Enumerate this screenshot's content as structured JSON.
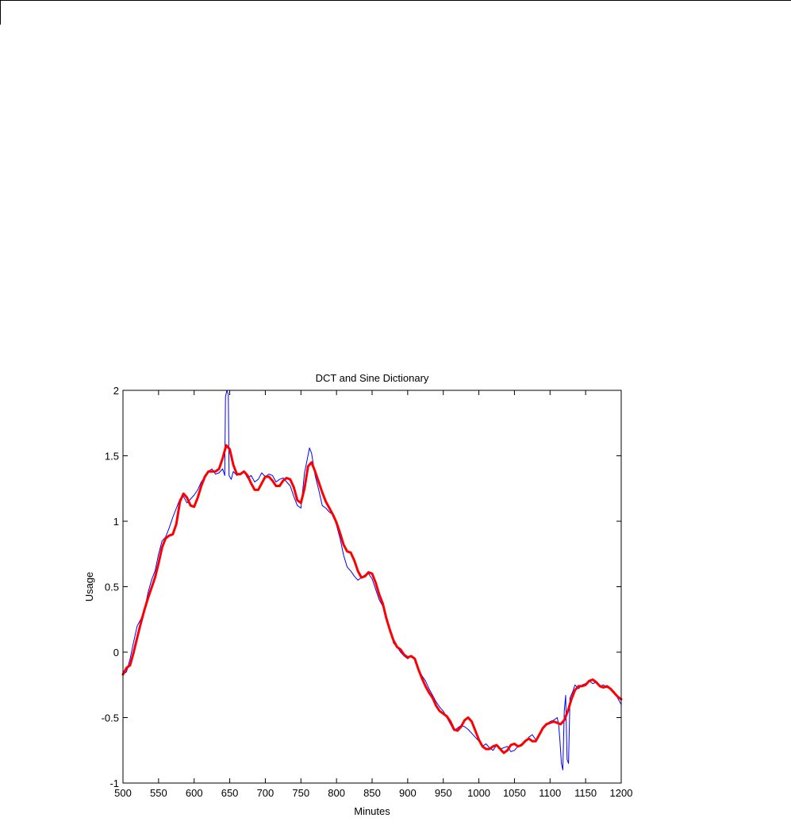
{
  "chart_data": {
    "type": "line",
    "title": "DCT and Sine Dictionary",
    "xlabel": "Minutes",
    "ylabel": "Usage",
    "xlim": [
      500,
      1200
    ],
    "ylim": [
      -1,
      2
    ],
    "x_ticks": [
      500,
      550,
      600,
      650,
      700,
      750,
      800,
      850,
      900,
      950,
      1000,
      1050,
      1100,
      1150,
      1200
    ],
    "y_ticks": [
      -1,
      -0.5,
      0,
      0.5,
      1,
      1.5,
      2
    ],
    "grid": false,
    "legend": "none",
    "series": [
      {
        "color": "#0000ff",
        "points": [
          [
            500,
            -0.17
          ],
          [
            505,
            -0.15
          ],
          [
            510,
            -0.05
          ],
          [
            515,
            0.08
          ],
          [
            520,
            0.2
          ],
          [
            525,
            0.25
          ],
          [
            530,
            0.32
          ],
          [
            535,
            0.45
          ],
          [
            540,
            0.55
          ],
          [
            545,
            0.62
          ],
          [
            550,
            0.75
          ],
          [
            555,
            0.85
          ],
          [
            560,
            0.88
          ],
          [
            565,
            0.95
          ],
          [
            570,
            1.03
          ],
          [
            575,
            1.1
          ],
          [
            580,
            1.17
          ],
          [
            585,
            1.19
          ],
          [
            590,
            1.14
          ],
          [
            595,
            1.17
          ],
          [
            600,
            1.2
          ],
          [
            605,
            1.24
          ],
          [
            610,
            1.3
          ],
          [
            615,
            1.34
          ],
          [
            620,
            1.38
          ],
          [
            625,
            1.4
          ],
          [
            630,
            1.36
          ],
          [
            635,
            1.37
          ],
          [
            640,
            1.4
          ],
          [
            643,
            1.35
          ],
          [
            644,
            1.95
          ],
          [
            646,
            2.0
          ],
          [
            648,
            1.97
          ],
          [
            649,
            1.35
          ],
          [
            652,
            1.32
          ],
          [
            655,
            1.38
          ],
          [
            660,
            1.35
          ],
          [
            665,
            1.36
          ],
          [
            670,
            1.38
          ],
          [
            675,
            1.33
          ],
          [
            680,
            1.35
          ],
          [
            685,
            1.3
          ],
          [
            690,
            1.32
          ],
          [
            695,
            1.37
          ],
          [
            700,
            1.34
          ],
          [
            705,
            1.36
          ],
          [
            710,
            1.35
          ],
          [
            715,
            1.3
          ],
          [
            720,
            1.32
          ],
          [
            725,
            1.33
          ],
          [
            730,
            1.3
          ],
          [
            735,
            1.27
          ],
          [
            740,
            1.19
          ],
          [
            745,
            1.12
          ],
          [
            750,
            1.1
          ],
          [
            755,
            1.37
          ],
          [
            758,
            1.45
          ],
          [
            762,
            1.56
          ],
          [
            765,
            1.52
          ],
          [
            770,
            1.35
          ],
          [
            775,
            1.24
          ],
          [
            780,
            1.12
          ],
          [
            785,
            1.1
          ],
          [
            790,
            1.07
          ],
          [
            795,
            1.05
          ],
          [
            800,
            0.97
          ],
          [
            805,
            0.87
          ],
          [
            810,
            0.74
          ],
          [
            815,
            0.65
          ],
          [
            820,
            0.62
          ],
          [
            825,
            0.58
          ],
          [
            830,
            0.55
          ],
          [
            835,
            0.57
          ],
          [
            840,
            0.59
          ],
          [
            845,
            0.6
          ],
          [
            850,
            0.56
          ],
          [
            855,
            0.48
          ],
          [
            860,
            0.4
          ],
          [
            865,
            0.35
          ],
          [
            870,
            0.27
          ],
          [
            875,
            0.18
          ],
          [
            880,
            0.07
          ],
          [
            885,
            0.04
          ],
          [
            890,
            0.0
          ],
          [
            895,
            -0.03
          ],
          [
            900,
            -0.05
          ],
          [
            905,
            -0.03
          ],
          [
            910,
            -0.05
          ],
          [
            915,
            -0.12
          ],
          [
            920,
            -0.18
          ],
          [
            925,
            -0.22
          ],
          [
            930,
            -0.28
          ],
          [
            935,
            -0.33
          ],
          [
            940,
            -0.38
          ],
          [
            945,
            -0.42
          ],
          [
            950,
            -0.45
          ],
          [
            955,
            -0.5
          ],
          [
            960,
            -0.55
          ],
          [
            965,
            -0.6
          ],
          [
            970,
            -0.58
          ],
          [
            975,
            -0.56
          ],
          [
            980,
            -0.57
          ],
          [
            985,
            -0.59
          ],
          [
            990,
            -0.62
          ],
          [
            995,
            -0.65
          ],
          [
            1000,
            -0.68
          ],
          [
            1005,
            -0.72
          ],
          [
            1010,
            -0.7
          ],
          [
            1015,
            -0.73
          ],
          [
            1020,
            -0.75
          ],
          [
            1025,
            -0.71
          ],
          [
            1030,
            -0.74
          ],
          [
            1035,
            -0.73
          ],
          [
            1040,
            -0.72
          ],
          [
            1045,
            -0.76
          ],
          [
            1050,
            -0.75
          ],
          [
            1055,
            -0.72
          ],
          [
            1060,
            -0.7
          ],
          [
            1065,
            -0.69
          ],
          [
            1070,
            -0.65
          ],
          [
            1075,
            -0.63
          ],
          [
            1080,
            -0.67
          ],
          [
            1085,
            -0.62
          ],
          [
            1090,
            -0.58
          ],
          [
            1095,
            -0.55
          ],
          [
            1100,
            -0.53
          ],
          [
            1105,
            -0.52
          ],
          [
            1110,
            -0.5
          ],
          [
            1112,
            -0.55
          ],
          [
            1114,
            -0.68
          ],
          [
            1116,
            -0.85
          ],
          [
            1118,
            -0.9
          ],
          [
            1120,
            -0.45
          ],
          [
            1122,
            -0.33
          ],
          [
            1124,
            -0.82
          ],
          [
            1126,
            -0.85
          ],
          [
            1128,
            -0.35
          ],
          [
            1132,
            -0.3
          ],
          [
            1135,
            -0.25
          ],
          [
            1140,
            -0.28
          ],
          [
            1145,
            -0.25
          ],
          [
            1150,
            -0.24
          ],
          [
            1155,
            -0.22
          ],
          [
            1160,
            -0.24
          ],
          [
            1165,
            -0.23
          ],
          [
            1170,
            -0.26
          ],
          [
            1175,
            -0.25
          ],
          [
            1180,
            -0.27
          ],
          [
            1185,
            -0.28
          ],
          [
            1190,
            -0.3
          ],
          [
            1195,
            -0.35
          ],
          [
            1200,
            -0.4
          ]
        ]
      },
      {
        "color": "#ff0000",
        "points": [
          [
            500,
            -0.17
          ],
          [
            505,
            -0.12
          ],
          [
            510,
            -0.1
          ],
          [
            515,
            0.0
          ],
          [
            520,
            0.11
          ],
          [
            525,
            0.22
          ],
          [
            530,
            0.32
          ],
          [
            535,
            0.41
          ],
          [
            540,
            0.49
          ],
          [
            545,
            0.57
          ],
          [
            550,
            0.68
          ],
          [
            555,
            0.8
          ],
          [
            560,
            0.87
          ],
          [
            565,
            0.89
          ],
          [
            570,
            0.9
          ],
          [
            575,
            0.98
          ],
          [
            580,
            1.15
          ],
          [
            585,
            1.21
          ],
          [
            590,
            1.18
          ],
          [
            595,
            1.12
          ],
          [
            600,
            1.11
          ],
          [
            605,
            1.18
          ],
          [
            610,
            1.27
          ],
          [
            615,
            1.34
          ],
          [
            620,
            1.38
          ],
          [
            625,
            1.38
          ],
          [
            630,
            1.38
          ],
          [
            635,
            1.4
          ],
          [
            640,
            1.48
          ],
          [
            645,
            1.58
          ],
          [
            650,
            1.55
          ],
          [
            655,
            1.43
          ],
          [
            660,
            1.36
          ],
          [
            665,
            1.36
          ],
          [
            670,
            1.38
          ],
          [
            675,
            1.35
          ],
          [
            680,
            1.29
          ],
          [
            685,
            1.24
          ],
          [
            690,
            1.24
          ],
          [
            695,
            1.29
          ],
          [
            700,
            1.34
          ],
          [
            705,
            1.34
          ],
          [
            710,
            1.31
          ],
          [
            715,
            1.27
          ],
          [
            720,
            1.27
          ],
          [
            725,
            1.31
          ],
          [
            730,
            1.33
          ],
          [
            735,
            1.32
          ],
          [
            740,
            1.26
          ],
          [
            745,
            1.16
          ],
          [
            750,
            1.14
          ],
          [
            755,
            1.25
          ],
          [
            760,
            1.42
          ],
          [
            765,
            1.45
          ],
          [
            770,
            1.38
          ],
          [
            775,
            1.3
          ],
          [
            780,
            1.22
          ],
          [
            785,
            1.15
          ],
          [
            790,
            1.1
          ],
          [
            795,
            1.05
          ],
          [
            800,
            0.99
          ],
          [
            805,
            0.91
          ],
          [
            810,
            0.82
          ],
          [
            815,
            0.77
          ],
          [
            820,
            0.76
          ],
          [
            825,
            0.7
          ],
          [
            830,
            0.62
          ],
          [
            835,
            0.57
          ],
          [
            840,
            0.58
          ],
          [
            845,
            0.61
          ],
          [
            850,
            0.6
          ],
          [
            855,
            0.53
          ],
          [
            860,
            0.44
          ],
          [
            865,
            0.37
          ],
          [
            870,
            0.26
          ],
          [
            875,
            0.17
          ],
          [
            880,
            0.09
          ],
          [
            885,
            0.04
          ],
          [
            890,
            0.02
          ],
          [
            895,
            -0.02
          ],
          [
            900,
            -0.04
          ],
          [
            905,
            -0.03
          ],
          [
            910,
            -0.05
          ],
          [
            915,
            -0.13
          ],
          [
            920,
            -0.2
          ],
          [
            925,
            -0.26
          ],
          [
            930,
            -0.31
          ],
          [
            935,
            -0.35
          ],
          [
            940,
            -0.41
          ],
          [
            945,
            -0.45
          ],
          [
            950,
            -0.47
          ],
          [
            955,
            -0.49
          ],
          [
            960,
            -0.53
          ],
          [
            965,
            -0.59
          ],
          [
            970,
            -0.6
          ],
          [
            975,
            -0.57
          ],
          [
            980,
            -0.52
          ],
          [
            985,
            -0.5
          ],
          [
            990,
            -0.53
          ],
          [
            995,
            -0.6
          ],
          [
            1000,
            -0.67
          ],
          [
            1005,
            -0.72
          ],
          [
            1010,
            -0.74
          ],
          [
            1015,
            -0.74
          ],
          [
            1020,
            -0.72
          ],
          [
            1025,
            -0.71
          ],
          [
            1030,
            -0.74
          ],
          [
            1035,
            -0.77
          ],
          [
            1040,
            -0.75
          ],
          [
            1045,
            -0.71
          ],
          [
            1050,
            -0.7
          ],
          [
            1055,
            -0.72
          ],
          [
            1060,
            -0.71
          ],
          [
            1065,
            -0.68
          ],
          [
            1070,
            -0.66
          ],
          [
            1075,
            -0.68
          ],
          [
            1080,
            -0.68
          ],
          [
            1085,
            -0.63
          ],
          [
            1090,
            -0.58
          ],
          [
            1095,
            -0.55
          ],
          [
            1100,
            -0.54
          ],
          [
            1105,
            -0.53
          ],
          [
            1110,
            -0.54
          ],
          [
            1115,
            -0.55
          ],
          [
            1120,
            -0.52
          ],
          [
            1125,
            -0.45
          ],
          [
            1130,
            -0.36
          ],
          [
            1135,
            -0.29
          ],
          [
            1140,
            -0.26
          ],
          [
            1145,
            -0.26
          ],
          [
            1150,
            -0.25
          ],
          [
            1155,
            -0.22
          ],
          [
            1160,
            -0.21
          ],
          [
            1165,
            -0.23
          ],
          [
            1170,
            -0.26
          ],
          [
            1175,
            -0.27
          ],
          [
            1180,
            -0.26
          ],
          [
            1185,
            -0.28
          ],
          [
            1190,
            -0.31
          ],
          [
            1195,
            -0.34
          ],
          [
            1200,
            -0.36
          ]
        ]
      }
    ]
  }
}
